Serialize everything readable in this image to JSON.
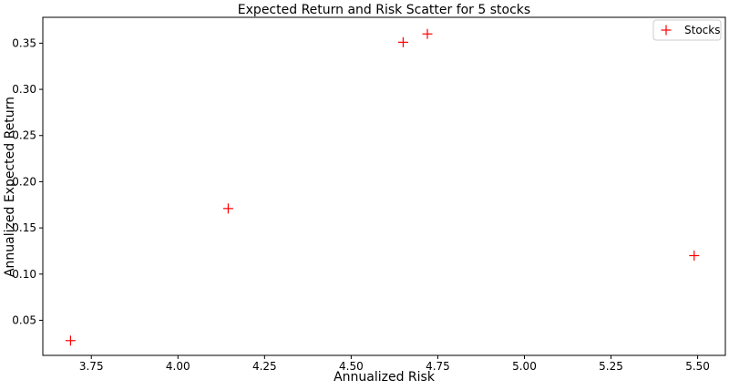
{
  "chart_data": {
    "type": "scatter",
    "title": "Expected Return and Risk Scatter for 5 stocks",
    "xlabel": "Annualized Risk",
    "ylabel": "Annualized Expected Return",
    "xlim": [
      3.61,
      5.58
    ],
    "ylim": [
      0.012,
      0.378
    ],
    "xticks": [
      3.75,
      4.0,
      4.25,
      4.5,
      4.75,
      5.0,
      5.25,
      5.5
    ],
    "xtick_labels": [
      "3.75",
      "4.00",
      "4.25",
      "4.50",
      "4.75",
      "5.00",
      "5.25",
      "5.50"
    ],
    "yticks": [
      0.05,
      0.1,
      0.15,
      0.2,
      0.25,
      0.3,
      0.35
    ],
    "ytick_labels": [
      "0.05",
      "0.10",
      "0.15",
      "0.20",
      "0.25",
      "0.30",
      "0.35"
    ],
    "grid": false,
    "legend_position": "top-right",
    "series": [
      {
        "name": "Stocks",
        "marker": "plus",
        "color": "#ff0000",
        "points": [
          {
            "x": 3.69,
            "y": 0.028
          },
          {
            "x": 4.145,
            "y": 0.171
          },
          {
            "x": 4.65,
            "y": 0.351
          },
          {
            "x": 4.72,
            "y": 0.36
          },
          {
            "x": 5.49,
            "y": 0.12
          }
        ]
      }
    ]
  }
}
